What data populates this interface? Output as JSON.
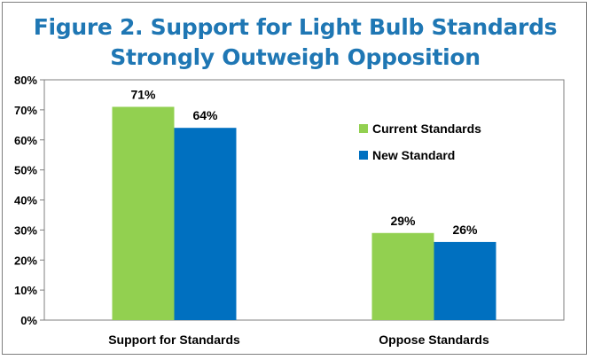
{
  "chart_data": {
    "type": "bar",
    "title_lines": [
      "Figure 2. Support for Light Bulb Standards",
      "Strongly Outweigh Opposition"
    ],
    "categories": [
      "Support for Standards",
      "Oppose Standards"
    ],
    "series": [
      {
        "name": "Current Standards",
        "values": [
          71,
          29
        ],
        "color": "#92d050"
      },
      {
        "name": "New Standard",
        "values": [
          64,
          26
        ],
        "color": "#0070c0"
      }
    ],
    "data_labels": [
      [
        "71%",
        "29%"
      ],
      [
        "64%",
        "26%"
      ]
    ],
    "ylim": [
      0,
      80
    ],
    "yticks": [
      0,
      10,
      20,
      30,
      40,
      50,
      60,
      70,
      80
    ],
    "ytick_labels": [
      "0%",
      "10%",
      "20%",
      "30%",
      "40%",
      "50%",
      "60%",
      "70%",
      "80%"
    ],
    "grid": false,
    "legend_position": "right"
  }
}
